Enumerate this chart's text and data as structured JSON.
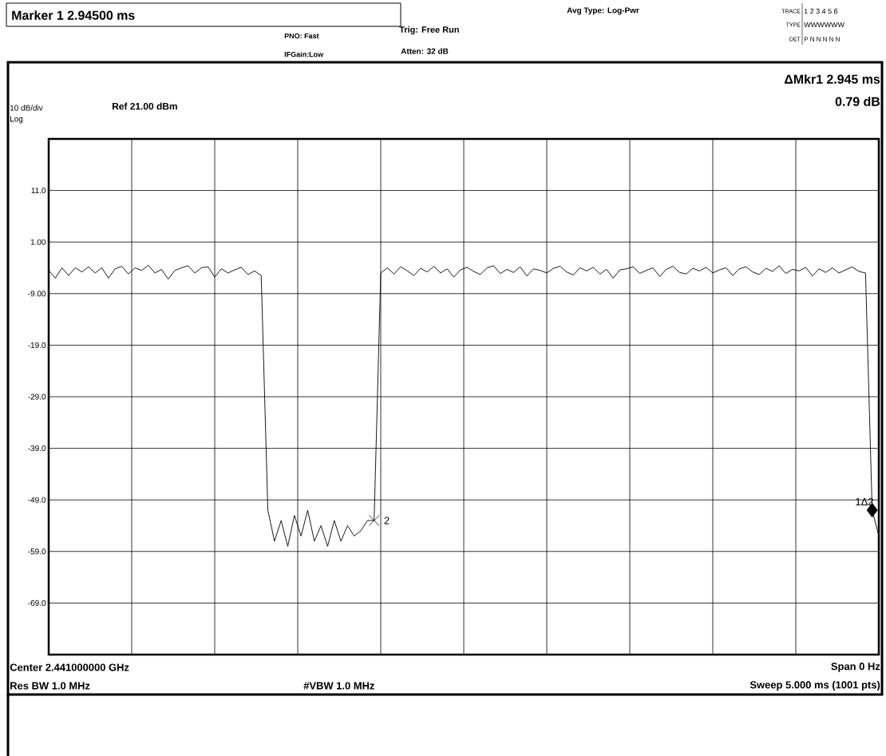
{
  "chart_data": {
    "type": "line",
    "title": "Marker 1 2.94500 ms",
    "annotations": [
      "PNO: Fast",
      "IFGain:Low",
      "Trig: Free Run",
      "Atten: 32 dB",
      "Avg Type: Log-Pwr",
      "TRACE",
      "1 2 3 4 5 6",
      "TYPE",
      "WWWWWW",
      "DET",
      "P N N N N N",
      "ΔMkr1 2.945 ms",
      "0.79 dB",
      "10 dB/div",
      "Ref 21.00 dBm",
      "Log",
      "Center 2.441000000 GHz",
      "Span 0 Hz",
      "Res BW 1.0 MHz",
      "#VBW 1.0 MHz",
      "Sweep  5.000 ms (1001 pts)",
      "2",
      "1Δ2"
    ],
    "categories": [
      null,
      null,
      null,
      null,
      null,
      null,
      null,
      null,
      null,
      null,
      null,
      null,
      null,
      null,
      null,
      null,
      null,
      null,
      null,
      null,
      null,
      null,
      null,
      null,
      null,
      null,
      null,
      null,
      null,
      null,
      null,
      null,
      null,
      null,
      null,
      null,
      null,
      null,
      null,
      null,
      null,
      null,
      null,
      null,
      null,
      null,
      null,
      null,
      null,
      null,
      null,
      null,
      null,
      null,
      null,
      null,
      null,
      null,
      null,
      null,
      null,
      null,
      null,
      null,
      null,
      null,
      null,
      null,
      null,
      null,
      null,
      null,
      null,
      null,
      null,
      null,
      null,
      null,
      null,
      null,
      null,
      null,
      null,
      null,
      null,
      null,
      null,
      null,
      null,
      null,
      null,
      null,
      null,
      null,
      null,
      null,
      null,
      null,
      null,
      null,
      null,
      null,
      null,
      null,
      null,
      null,
      null,
      null,
      null,
      null,
      null,
      null,
      null,
      null,
      null,
      null,
      null,
      null,
      null,
      null,
      null,
      null,
      null,
      null,
      null,
      null
    ],
    "ylim": [
      -79,
      21
    ],
    "yticks": [
      {
        "value": 11,
        "label": "11.0"
      },
      {
        "value": 1,
        "label": "1.00"
      },
      {
        "value": -9,
        "label": "-9.00"
      },
      {
        "value": -19,
        "label": "-19.0"
      },
      {
        "value": -29,
        "label": "-29.0"
      },
      {
        "value": -39,
        "label": "-39.0"
      },
      {
        "value": -49,
        "label": "-49.0"
      },
      {
        "value": -59,
        "label": "-59.0"
      },
      {
        "value": -69,
        "label": "-69.0"
      }
    ],
    "grid": true,
    "tick_labels": "y",
    "series": [
      {
        "color": "#000000",
        "marker": "none",
        "values": [
          -4.5,
          -6,
          -4,
          -5.5,
          -4,
          -4.8,
          -3.8,
          -5,
          -4,
          -6,
          -4.2,
          -3.7,
          -5.2,
          -4,
          -4.5,
          -3.5,
          -5,
          -4.3,
          -6.2,
          -4.5,
          -4,
          -3.6,
          -5,
          -4,
          -3.8,
          -5.8,
          -4.2,
          -5,
          -4.4,
          -3.9,
          -5.3,
          -4.6,
          -5.5,
          -51,
          -57,
          -53,
          -58,
          -52,
          -56,
          -51,
          -57,
          -54,
          -58,
          -53,
          -57,
          -54,
          -56,
          -55,
          -53,
          -53,
          -5,
          -4,
          -5.2,
          -3.8,
          -4.6,
          -5.5,
          -4.1,
          -4.8,
          -3.7,
          -5,
          -4.2,
          -5.8,
          -4.4,
          -3.9,
          -4.7,
          -5.3,
          -4,
          -3.6,
          -5.1,
          -4.3,
          -4.9,
          -3.8,
          -5.6,
          -4.2,
          -4.5,
          -5,
          -4.1,
          -3.7,
          -4.8,
          -5.4,
          -4,
          -4.6,
          -3.9,
          -5.2,
          -4.3,
          -6,
          -4.4,
          -4.2,
          -3.8,
          -5.1,
          -4.5,
          -4,
          -5.7,
          -4.3,
          -3.7,
          -4.9,
          -5.2,
          -4.1,
          -4.6,
          -3.9,
          -5,
          -4.4,
          -4,
          -5.5,
          -4.2,
          -3.8,
          -4.8,
          -5.3,
          -4.1,
          -4.7,
          -3.6,
          -5.1,
          -4.3,
          -4.6,
          -3.9,
          -5.6,
          -4.2,
          -4.9,
          -4,
          -5,
          -4.4,
          -3.8,
          -4.7,
          -5,
          -51,
          -56
        ]
      },
      {
        "type": "scatter",
        "color": "#000000",
        "marker": "cross",
        "values": [
          null,
          null,
          null,
          null,
          null,
          null,
          null,
          null,
          null,
          null,
          null,
          null,
          null,
          null,
          null,
          null,
          null,
          null,
          null,
          null,
          null,
          null,
          null,
          null,
          null,
          null,
          null,
          null,
          null,
          null,
          null,
          null,
          null,
          null,
          null,
          null,
          null,
          null,
          null,
          null,
          null,
          null,
          null,
          null,
          null,
          null,
          null,
          null,
          null,
          -53,
          null,
          null,
          null,
          null,
          null,
          null,
          null,
          null,
          null,
          null,
          null,
          null,
          null,
          null,
          null,
          null,
          null,
          null,
          null,
          null,
          null,
          null,
          null,
          null,
          null,
          null,
          null,
          null,
          null,
          null,
          null,
          null,
          null,
          null,
          null,
          null,
          null,
          null,
          null,
          null,
          null,
          null,
          null,
          null,
          null,
          null,
          null,
          null,
          null,
          null,
          null,
          null,
          null,
          null,
          null,
          null,
          null,
          null,
          null,
          null,
          null,
          null,
          null,
          null,
          null,
          null,
          null,
          null,
          null,
          null,
          null,
          null,
          null,
          null,
          null,
          null
        ]
      },
      {
        "type": "scatter",
        "color": "#000000",
        "marker": "diamond",
        "values": [
          null,
          null,
          null,
          null,
          null,
          null,
          null,
          null,
          null,
          null,
          null,
          null,
          null,
          null,
          null,
          null,
          null,
          null,
          null,
          null,
          null,
          null,
          null,
          null,
          null,
          null,
          null,
          null,
          null,
          null,
          null,
          null,
          null,
          null,
          null,
          null,
          null,
          null,
          null,
          null,
          null,
          null,
          null,
          null,
          null,
          null,
          null,
          null,
          null,
          null,
          null,
          null,
          null,
          null,
          null,
          null,
          null,
          null,
          null,
          null,
          null,
          null,
          null,
          null,
          null,
          null,
          null,
          null,
          null,
          null,
          null,
          null,
          null,
          null,
          null,
          null,
          null,
          null,
          null,
          null,
          null,
          null,
          null,
          null,
          null,
          null,
          null,
          null,
          null,
          null,
          null,
          null,
          null,
          null,
          null,
          null,
          null,
          null,
          null,
          null,
          null,
          null,
          null,
          null,
          null,
          null,
          null,
          null,
          null,
          null,
          null,
          null,
          null,
          null,
          null,
          null,
          null,
          null,
          null,
          null,
          null,
          null,
          null,
          null,
          -51,
          null
        ]
      }
    ]
  }
}
